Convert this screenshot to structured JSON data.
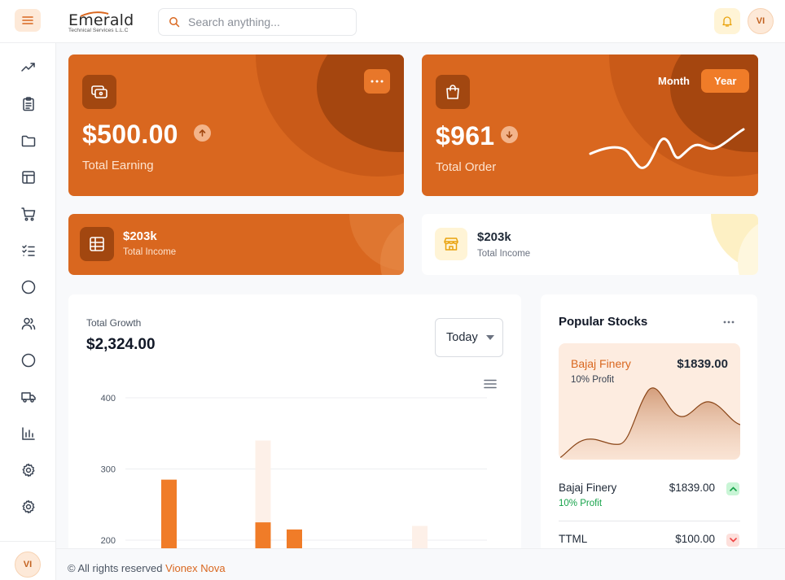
{
  "brand": {
    "name": "Emerald",
    "subtitle": "Technical Services L.L.C"
  },
  "search": {
    "placeholder": "Search anything..."
  },
  "user": {
    "initials": "VI"
  },
  "icons": {
    "menu": "hamburger-icon",
    "search": "search-icon",
    "bell": "bell-icon",
    "sidebar": [
      "trending-up-icon",
      "clipboard-icon",
      "folder-icon",
      "layout-icon",
      "cart-icon",
      "checklist-icon",
      "circle-icon",
      "users-icon",
      "circle-icon",
      "truck-icon",
      "bar-chart-icon",
      "settings-icon",
      "settings-icon"
    ]
  },
  "earning": {
    "amount": "$500.00",
    "label": "Total Earning"
  },
  "order": {
    "amount": "$961",
    "label": "Total Order",
    "toggle": {
      "month": "Month",
      "year": "Year",
      "active": "year"
    }
  },
  "income_dark": {
    "amount": "$203k",
    "label": "Total Income"
  },
  "income_light": {
    "amount": "$203k",
    "label": "Total Income"
  },
  "growth": {
    "title": "Total Growth",
    "amount": "$2,324.00",
    "period": "Today"
  },
  "chart_data": {
    "type": "bar",
    "y_ticks": [
      400,
      300,
      200
    ],
    "ylim": [
      200,
      400
    ],
    "series": [
      {
        "color": "#f07c28",
        "values": [
          {
            "x": 0,
            "y": 285
          },
          {
            "x": 3,
            "y": 225
          },
          {
            "x": 4,
            "y": 215
          }
        ]
      },
      {
        "color": "#fdf0e8",
        "values": [
          {
            "x": 3,
            "y": 340
          },
          {
            "x": 8,
            "y": 220
          }
        ]
      }
    ],
    "x_count": 9
  },
  "stocks": {
    "title": "Popular Stocks",
    "featured": {
      "name": "Bajaj Finery",
      "price": "$1839.00",
      "profit": "10% Profit"
    },
    "list": [
      {
        "name": "Bajaj Finery",
        "price": "$1839.00",
        "profit": "10% Profit",
        "trend": "up"
      },
      {
        "name": "TTML",
        "price": "$100.00",
        "trend": "down"
      }
    ]
  },
  "footer": {
    "prefix": "© All rights reserved",
    "company": "Vionex Nova"
  },
  "colors": {
    "accent": "#d9671f",
    "accent_dark": "#a24710",
    "bar": "#f07c28",
    "bar_light": "#fdf0e8",
    "up": "#22c55e",
    "down": "#ef4444"
  }
}
